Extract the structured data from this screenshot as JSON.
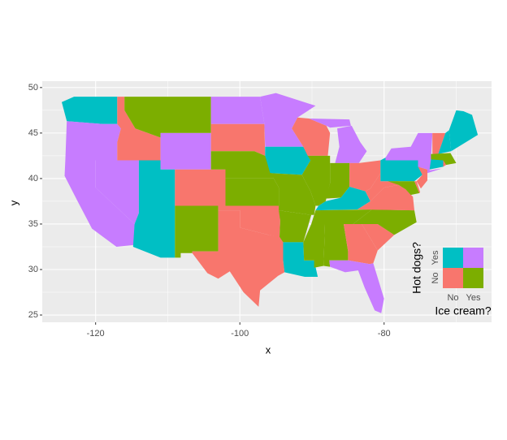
{
  "chart_data": {
    "type": "map",
    "x_label": "x",
    "y_label": "y",
    "xlim": [
      -127.4,
      -65.1
    ],
    "ylim": [
      24.2,
      50.7
    ],
    "xticks": [
      -120,
      -100,
      -80
    ],
    "yticks": [
      25,
      30,
      35,
      40,
      45,
      50
    ],
    "grid": true,
    "legend": {
      "x_title": "Ice cream?",
      "y_title": "Hot dogs?",
      "x_labels": [
        "No",
        "Yes"
      ],
      "y_labels": [
        "No",
        "Yes"
      ],
      "colors": [
        [
          "#F8766D",
          "#7CAE00"
        ],
        [
          "#00BFC4",
          "#C77CFF"
        ]
      ]
    }
  }
}
